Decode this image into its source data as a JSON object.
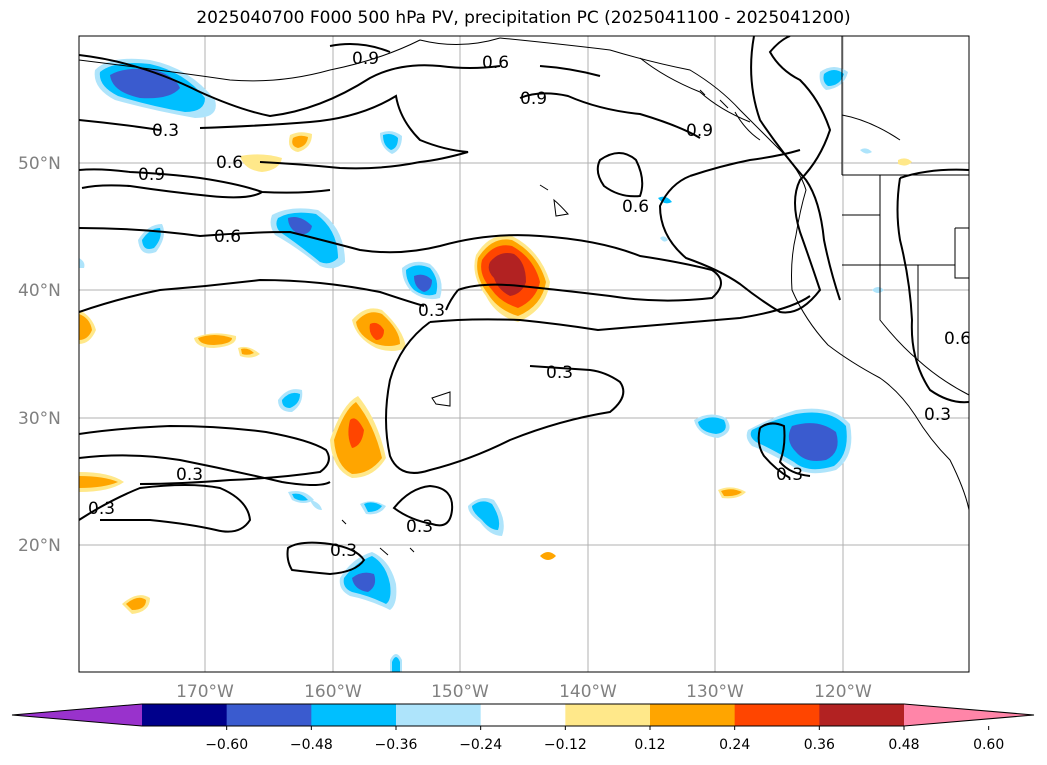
{
  "title": "2025040700 F000 500 hPa PV, precipitation PC (2025041100 - 2025041200)",
  "map": {
    "lat_labels": [
      "50°N",
      "40°N",
      "30°N",
      "20°N"
    ],
    "lon_labels": [
      "170°W",
      "160°W",
      "150°W",
      "140°W",
      "130°W",
      "120°W"
    ],
    "contour_labels": [
      "0.9",
      "0.6",
      "0.3"
    ]
  },
  "colorbar": {
    "ticks": [
      "−0.60",
      "−0.48",
      "−0.36",
      "−0.24",
      "−0.12",
      "0.12",
      "0.24",
      "0.36",
      "0.48",
      "0.60"
    ],
    "colors": [
      "#9932cc",
      "#00008b",
      "#3a5bcf",
      "#00bfff",
      "#aee4fb",
      "#ffffff",
      "#ffe88a",
      "#ffa500",
      "#ff4500",
      "#b22222",
      "#ff85a8"
    ]
  }
}
